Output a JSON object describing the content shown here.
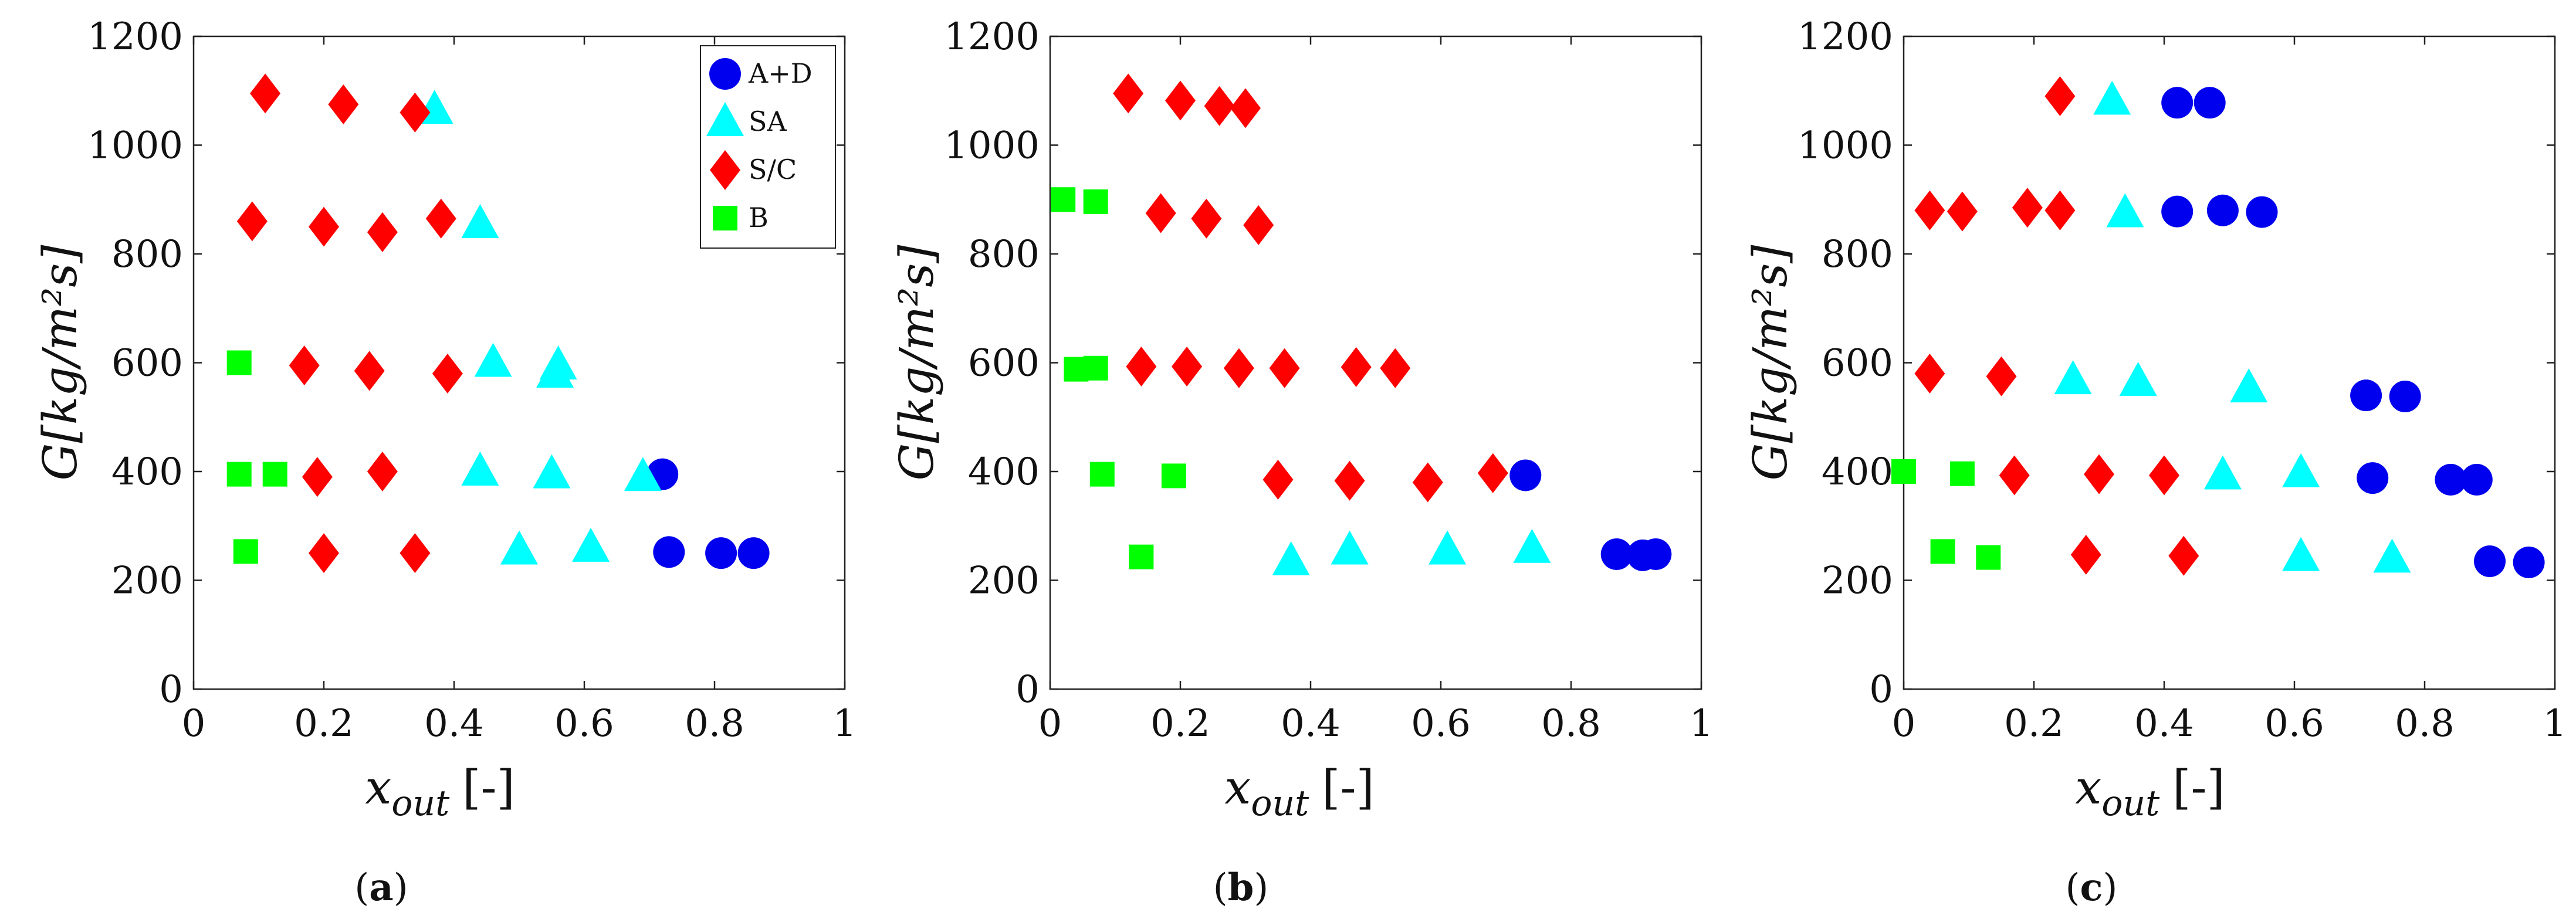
{
  "chart_data": [
    {
      "type": "scatter",
      "panel_label": "(a)",
      "caption_letter": "a",
      "xlabel": "x",
      "xlabel_sub": "out",
      "xlabel_unit": "[-]",
      "ylabel": "G[kg/m²s]",
      "xlim": [
        0,
        1
      ],
      "ylim": [
        0,
        1200
      ],
      "xticks": [
        "0",
        "0.2",
        "0.4",
        "0.6",
        "0.8",
        "1"
      ],
      "yticks": [
        "0",
        "200",
        "400",
        "600",
        "800",
        "1000",
        "1200"
      ],
      "legend_position": "top-right",
      "show_legend": true,
      "series": [
        {
          "name": "A+D",
          "marker": "circle",
          "color": "#0000ee",
          "points": [
            [
              0.72,
              395
            ],
            [
              0.73,
              252
            ],
            [
              0.81,
              250
            ],
            [
              0.86,
              250
            ]
          ]
        },
        {
          "name": "SA",
          "marker": "triangle",
          "color": "#00ffff",
          "points": [
            [
              0.37,
              1065
            ],
            [
              0.44,
              855
            ],
            [
              0.46,
              600
            ],
            [
              0.56,
              595
            ],
            [
              0.555,
              580
            ],
            [
              0.44,
              400
            ],
            [
              0.55,
              395
            ],
            [
              0.69,
              390
            ],
            [
              0.5,
              255
            ],
            [
              0.61,
              260
            ]
          ]
        },
        {
          "name": "S/C",
          "marker": "diamond",
          "color": "#ff0000",
          "points": [
            [
              0.11,
              1095
            ],
            [
              0.23,
              1075
            ],
            [
              0.34,
              1060
            ],
            [
              0.09,
              860
            ],
            [
              0.2,
              850
            ],
            [
              0.29,
              840
            ],
            [
              0.38,
              865
            ],
            [
              0.17,
              595
            ],
            [
              0.27,
              585
            ],
            [
              0.39,
              580
            ],
            [
              0.19,
              390
            ],
            [
              0.29,
              400
            ],
            [
              0.2,
              250
            ],
            [
              0.34,
              250
            ]
          ]
        },
        {
          "name": "B",
          "marker": "square",
          "color": "#00ff00",
          "points": [
            [
              0.07,
              600
            ],
            [
              0.07,
              395
            ],
            [
              0.125,
              395
            ],
            [
              0.08,
              253
            ]
          ]
        }
      ]
    },
    {
      "type": "scatter",
      "panel_label": "(b)",
      "caption_letter": "b",
      "xlabel": "x",
      "xlabel_sub": "out",
      "xlabel_unit": "[-]",
      "ylabel": "G[kg/m²s]",
      "xlim": [
        0,
        1
      ],
      "ylim": [
        0,
        1200
      ],
      "xticks": [
        "0",
        "0.2",
        "0.4",
        "0.6",
        "0.8",
        "1"
      ],
      "yticks": [
        "0",
        "200",
        "400",
        "600",
        "800",
        "1000",
        "1200"
      ],
      "show_legend": false,
      "series": [
        {
          "name": "A+D",
          "marker": "circle",
          "color": "#0000ee",
          "points": [
            [
              0.73,
              393
            ],
            [
              0.87,
              248
            ],
            [
              0.91,
              246
            ],
            [
              0.93,
              248
            ]
          ]
        },
        {
          "name": "SA",
          "marker": "triangle",
          "color": "#00ffff",
          "points": [
            [
              0.37,
              235
            ],
            [
              0.46,
              255
            ],
            [
              0.61,
              255
            ],
            [
              0.74,
              258
            ]
          ]
        },
        {
          "name": "S/C",
          "marker": "diamond",
          "color": "#ff0000",
          "points": [
            [
              0.12,
              1095
            ],
            [
              0.2,
              1082
            ],
            [
              0.26,
              1072
            ],
            [
              0.3,
              1068
            ],
            [
              0.17,
              875
            ],
            [
              0.24,
              865
            ],
            [
              0.32,
              853
            ],
            [
              0.14,
              593
            ],
            [
              0.21,
              593
            ],
            [
              0.29,
              590
            ],
            [
              0.36,
              590
            ],
            [
              0.47,
              592
            ],
            [
              0.53,
              590
            ],
            [
              0.35,
              385
            ],
            [
              0.46,
              383
            ],
            [
              0.58,
              380
            ],
            [
              0.68,
              397
            ]
          ]
        },
        {
          "name": "B",
          "marker": "square",
          "color": "#00ff00",
          "points": [
            [
              0.02,
              900
            ],
            [
              0.07,
              896
            ],
            [
              0.04,
              588
            ],
            [
              0.07,
              590
            ],
            [
              0.08,
              395
            ],
            [
              0.19,
              392
            ],
            [
              0.14,
              243
            ]
          ]
        }
      ]
    },
    {
      "type": "scatter",
      "panel_label": "(c)",
      "caption_letter": "c",
      "xlabel": "x",
      "xlabel_sub": "out",
      "xlabel_unit": "[-]",
      "ylabel": "G[kg/m²s]",
      "xlim": [
        0,
        1
      ],
      "ylim": [
        0,
        1200
      ],
      "xticks": [
        "0",
        "0.2",
        "0.4",
        "0.6",
        "0.8",
        "1"
      ],
      "yticks": [
        "0",
        "200",
        "400",
        "600",
        "800",
        "1000",
        "1200"
      ],
      "show_legend": false,
      "series": [
        {
          "name": "A+D",
          "marker": "circle",
          "color": "#0000ee",
          "points": [
            [
              0.42,
              1078
            ],
            [
              0.47,
              1078
            ],
            [
              0.42,
              878
            ],
            [
              0.49,
              880
            ],
            [
              0.55,
              877
            ],
            [
              0.71,
              540
            ],
            [
              0.77,
              538
            ],
            [
              0.72,
              388
            ],
            [
              0.84,
              385
            ],
            [
              0.88,
              385
            ],
            [
              0.9,
              235
            ],
            [
              0.96,
              233
            ]
          ]
        },
        {
          "name": "SA",
          "marker": "triangle",
          "color": "#00ffff",
          "points": [
            [
              0.32,
              1082
            ],
            [
              0.34,
              875
            ],
            [
              0.26,
              568
            ],
            [
              0.36,
              565
            ],
            [
              0.53,
              553
            ],
            [
              0.49,
              393
            ],
            [
              0.61,
              397
            ],
            [
              0.61,
              243
            ],
            [
              0.75,
              240
            ]
          ]
        },
        {
          "name": "S/C",
          "marker": "diamond",
          "color": "#ff0000",
          "points": [
            [
              0.24,
              1090
            ],
            [
              0.04,
              880
            ],
            [
              0.09,
              878
            ],
            [
              0.19,
              885
            ],
            [
              0.24,
              880
            ],
            [
              0.04,
              580
            ],
            [
              0.15,
              575
            ],
            [
              0.17,
              393
            ],
            [
              0.3,
              395
            ],
            [
              0.4,
              393
            ],
            [
              0.28,
              247
            ],
            [
              0.43,
              245
            ]
          ]
        },
        {
          "name": "B",
          "marker": "square",
          "color": "#00ff00",
          "points": [
            [
              0.0,
              400
            ],
            [
              0.09,
              396
            ],
            [
              0.06,
              253
            ],
            [
              0.13,
              242
            ]
          ]
        }
      ]
    }
  ]
}
